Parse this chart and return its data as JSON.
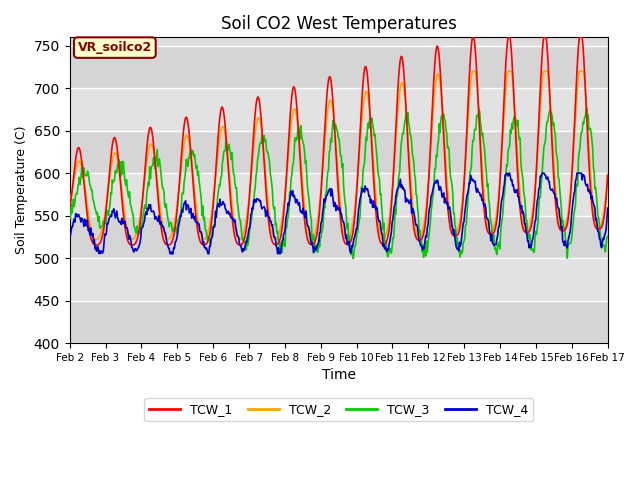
{
  "title": "Soil CO2 West Temperatures",
  "xlabel": "Time",
  "ylabel": "Soil Temperature (C)",
  "ylim": [
    400,
    760
  ],
  "yticks": [
    400,
    450,
    500,
    550,
    600,
    650,
    700,
    750
  ],
  "annotation_text": "VR_soilco2",
  "annotation_bg": "#FFFFCC",
  "annotation_border": "#8B0000",
  "bg_color": "#DCDCDC",
  "legend_entries": [
    "TCW_1",
    "TCW_2",
    "TCW_3",
    "TCW_4"
  ],
  "line_colors": [
    "#FF0000",
    "#FFA500",
    "#00CC00",
    "#0000CD"
  ],
  "x_start": 2.0,
  "x_end": 17.0,
  "xtick_labels": [
    "Feb 2",
    "Feb 3",
    "Feb 4",
    "Feb 5",
    "Feb 6",
    "Feb 7",
    "Feb 8",
    "Feb 9",
    "Feb 10",
    "Feb 11",
    "Feb 12",
    "Feb 13",
    "Feb 14",
    "Feb 15",
    "Feb 16",
    "Feb 17"
  ],
  "xtick_positions": [
    2,
    3,
    4,
    5,
    6,
    7,
    8,
    9,
    10,
    11,
    12,
    13,
    14,
    15,
    16,
    17
  ]
}
